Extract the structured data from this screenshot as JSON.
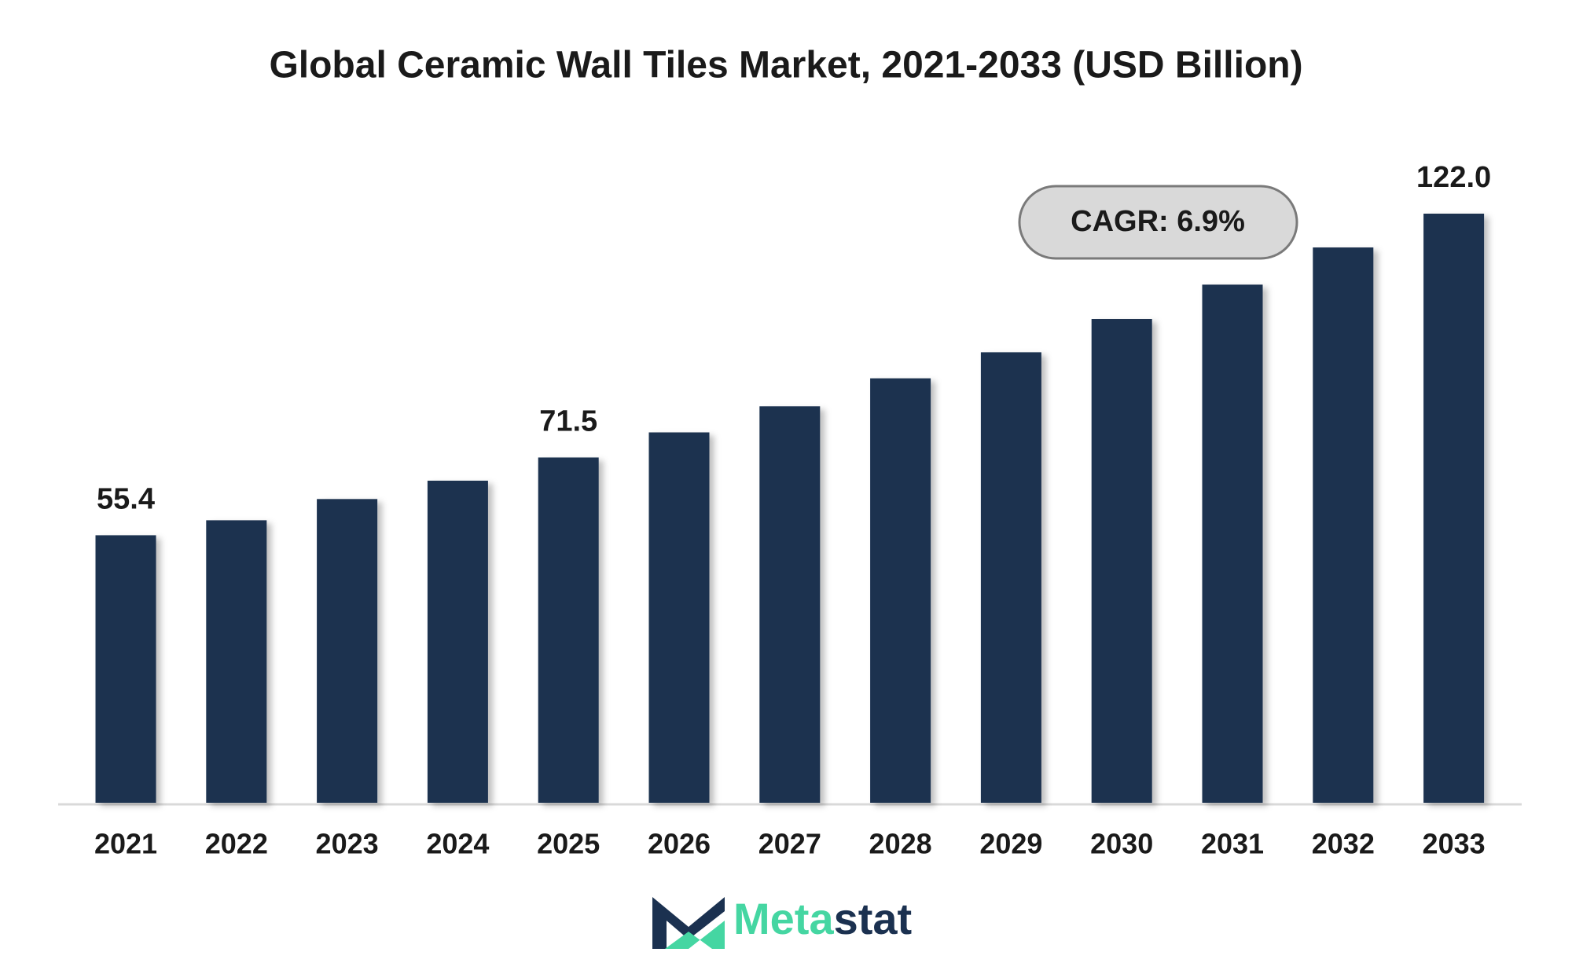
{
  "chart_data": {
    "type": "bar",
    "title": "Global Ceramic Wall Tiles Market, 2021-2033 (USD Billion)",
    "categories": [
      "2021",
      "2022",
      "2023",
      "2024",
      "2025",
      "2026",
      "2027",
      "2028",
      "2029",
      "2030",
      "2031",
      "2032",
      "2033"
    ],
    "values": [
      55.4,
      58.5,
      62.9,
      66.7,
      71.5,
      76.7,
      82.1,
      87.9,
      93.3,
      100.2,
      107.3,
      115.0,
      122.0
    ],
    "value_labels": [
      "55.4",
      null,
      null,
      null,
      "71.5",
      null,
      null,
      null,
      null,
      null,
      null,
      null,
      "122.0"
    ],
    "color": "#1b3150",
    "annotation": "CAGR: 6.9%"
  },
  "logo": {
    "prefix": "Meta",
    "suffix": "stat"
  }
}
